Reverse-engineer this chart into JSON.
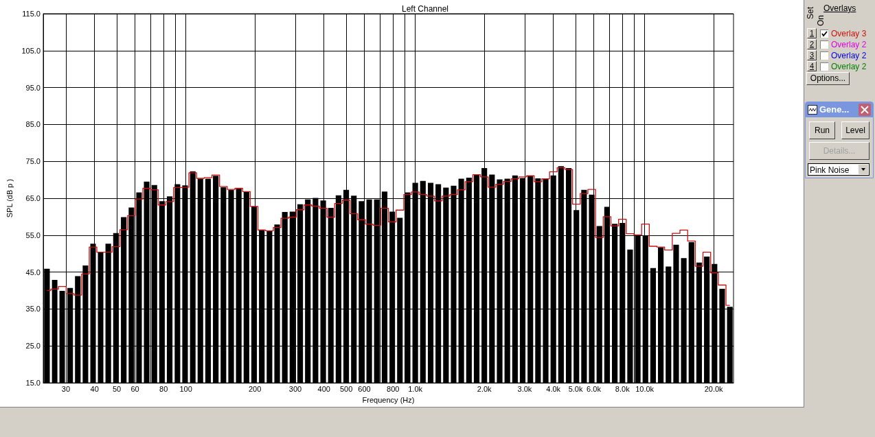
{
  "chart_data": {
    "type": "bar",
    "title": "Left Channel",
    "xlabel": "Frequency (Hz)",
    "ylabel": "SPL (dB p )",
    "log": "x",
    "grid": true,
    "x": [
      24.8,
      26.8,
      28.9,
      31.3,
      33.8,
      36.5,
      39.4,
      42.5,
      45.9,
      49.6,
      53.6,
      57.9,
      62.5,
      67.5,
      72.9,
      78.7,
      85.0,
      91.9,
      99.2,
      107.2,
      115.7,
      125,
      135,
      145.8,
      157.5,
      170.1,
      183.7,
      198.4,
      214.3,
      231.5,
      250,
      270,
      291.6,
      315,
      340.2,
      367.4,
      396.9,
      428.6,
      462.9,
      500,
      540,
      583,
      630,
      680,
      735,
      794,
      857,
      926,
      1000,
      1080,
      1167,
      1260,
      1361,
      1470,
      1587,
      1715,
      1852,
      2000,
      2160,
      2333,
      2520,
      2722,
      2939,
      3175,
      3429,
      3703,
      4000,
      4320,
      4666,
      5040,
      5443,
      5879,
      6350,
      6858,
      7407,
      8000,
      8640,
      9332,
      10079,
      10886,
      11758,
      12699,
      13716,
      14813,
      16000,
      17281,
      18664,
      20159,
      21772,
      23515
    ],
    "xlim": [
      23.9,
      24400
    ],
    "xticks": [
      30,
      40,
      50,
      60,
      {
        "value": 70,
        "label": null
      },
      80,
      {
        "value": 90,
        "label": null
      },
      100,
      200,
      300,
      400,
      500,
      600,
      {
        "value": 700,
        "label": null
      },
      800,
      {
        "value": 900,
        "label": null
      },
      {
        "value": 1000,
        "label": "1.0k"
      },
      {
        "value": 2000,
        "label": "2.0k"
      },
      {
        "value": 3000,
        "label": "3.0k"
      },
      {
        "value": 4000,
        "label": "4.0k"
      },
      {
        "value": 5000,
        "label": "5.0k"
      },
      {
        "value": 6000,
        "label": "6.0k"
      },
      {
        "value": 7000,
        "label": null
      },
      {
        "value": 8000,
        "label": "8.0k"
      },
      {
        "value": 9000,
        "label": null
      },
      {
        "value": 10000,
        "label": "10.0k"
      },
      {
        "value": 20000,
        "label": "20.0k"
      }
    ],
    "ylim": [
      15,
      115
    ],
    "yticks": [
      {
        "value": 15,
        "label": "15.0"
      },
      {
        "value": 25,
        "label": "25.0"
      },
      {
        "value": 35,
        "label": "35.0"
      },
      {
        "value": 45,
        "label": "45.0"
      },
      {
        "value": 55,
        "label": "55.0"
      },
      {
        "value": 65,
        "label": "65.0"
      },
      {
        "value": 75,
        "label": "75.0"
      },
      {
        "value": 85,
        "label": "85.0"
      },
      {
        "value": 95,
        "label": "95.0"
      },
      {
        "value": 105,
        "label": "105.0"
      },
      {
        "value": 115,
        "label": "115.0"
      }
    ],
    "series": [
      {
        "color": "#000000",
        "values": [
          45.9,
          42.9,
          39.9,
          40.7,
          43.9,
          46.8,
          52.7,
          50.4,
          52.7,
          55.6,
          59.9,
          62.5,
          66.6,
          69.5,
          68.6,
          64.2,
          65.5,
          68.8,
          68.5,
          72.3,
          70.3,
          70.3,
          71.1,
          68.0,
          67.3,
          67.7,
          66.8,
          62.8,
          56.5,
          56.2,
          57.9,
          61.3,
          61.4,
          63.4,
          64.7,
          65.1,
          64.4,
          62.4,
          65.8,
          67.3,
          65.7,
          64.2,
          64.7,
          64.7,
          66.8,
          61.4,
          59.7,
          66.6,
          69.2,
          69.7,
          69.2,
          68.8,
          67.9,
          68.4,
          70.3,
          70.6,
          71.4,
          73.2,
          71.4,
          70.1,
          70.3,
          71.2,
          70.5,
          71.1,
          70.4,
          70.3,
          71.2,
          73.7,
          73.2,
          61.8,
          67.3,
          66.0,
          57.5,
          62.7,
          58.1,
          58.3,
          51.1,
          54.8,
          54.8,
          46.1,
          51.7,
          46.5,
          52.4,
          48.8,
          53.1,
          47.6,
          49.2,
          47.2,
          40.5,
          35.6
        ]
      },
      {
        "type": "step",
        "name": "Overlay 3",
        "color": "#cc1010",
        "marker": "none",
        "values": [
          40.0,
          40.4,
          41.1,
          39.2,
          38.8,
          44.5,
          51.8,
          50.4,
          50.4,
          51.9,
          56.5,
          60.3,
          64.8,
          67.7,
          67.3,
          63.2,
          64.1,
          67.9,
          68.0,
          71.9,
          70.4,
          70.6,
          71.3,
          68.2,
          67.4,
          67.7,
          66.8,
          62.8,
          56.4,
          56.2,
          57.1,
          59.6,
          59.9,
          61.9,
          63.2,
          62.9,
          62.3,
          59.9,
          63.6,
          64.5,
          60.8,
          59.2,
          58.0,
          57.7,
          62.3,
          58.6,
          61.8,
          66.0,
          66.7,
          66.0,
          65.6,
          64.3,
          65.6,
          66.0,
          67.3,
          69.5,
          71.4,
          70.8,
          68.0,
          68.8,
          69.6,
          70.3,
          70.8,
          71.1,
          69.5,
          70.3,
          72.2,
          73.3,
          72.8,
          63.4,
          66.3,
          67.4,
          54.4,
          60.0,
          57.5,
          59.3,
          55.4,
          55.1,
          58.0,
          52.0,
          51.8,
          51.0,
          55.5,
          56.4,
          53.4,
          46.6,
          50.4,
          44.8,
          41.5,
          36.0
        ]
      }
    ],
    "annotations": [
      "Overlays",
      "Set",
      "On",
      "1",
      "2",
      "3",
      "4",
      "Overlay 2",
      "Overlay 2",
      "Overlay 2",
      "Options...",
      "Gene...",
      "Run",
      "Level",
      "Details...",
      "Pink Noise"
    ]
  }
}
